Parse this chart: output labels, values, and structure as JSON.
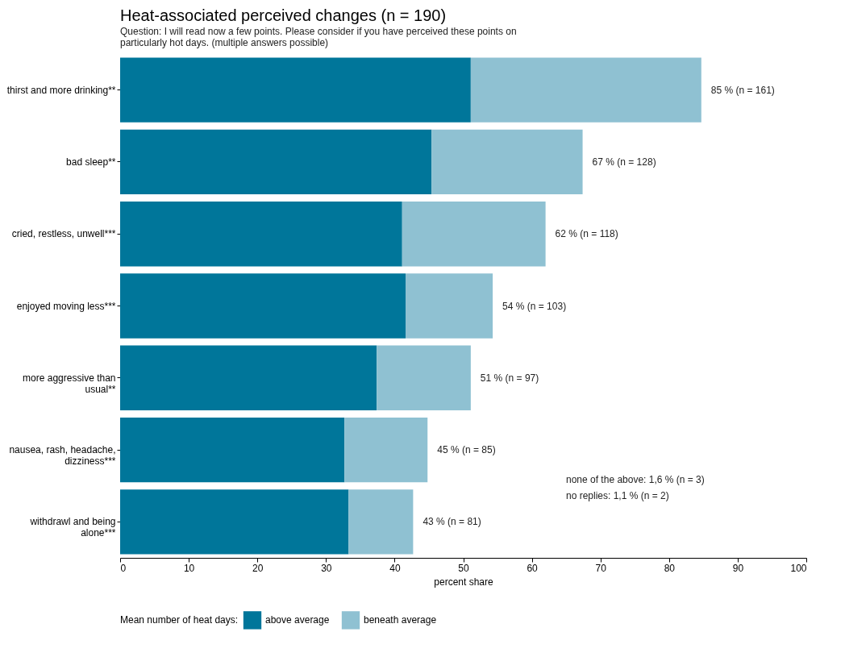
{
  "chart_data": {
    "type": "bar",
    "orientation": "horizontal",
    "stacked": true,
    "title": "Heat-associated perceived changes (n = 190)",
    "subtitle": "Question: I will read now a few points. Please consider if you have perceived these points on particularly hot days. (multiple answers possible)",
    "xlabel": "percent share",
    "legend_title": "Mean number of heat days:",
    "categories": [
      "thirst and more drinking**",
      "bad sleep**",
      "cried, restless, unwell***",
      "enjoyed moving less***",
      "more aggressive than\nusual**",
      "nausea, rash, headache,\ndizziness***",
      "withdrawl and being\nalone***"
    ],
    "series": [
      {
        "name": "above average",
        "color": "#00769a",
        "values": [
          51.1,
          45.4,
          41.1,
          41.6,
          37.4,
          32.7,
          33.3
        ]
      },
      {
        "name": "beneath average",
        "color": "#8fc1d2",
        "values": [
          33.6,
          22.0,
          20.9,
          12.7,
          13.7,
          12.1,
          9.4
        ]
      }
    ],
    "totals": [
      "85 % (n = 161)",
      "67 % (n = 128)",
      "62 % (n = 118)",
      "54 % (n = 103)",
      "51 % (n = 97)",
      "45 % (n = 85)",
      "43 % (n = 81)"
    ],
    "xlim": [
      0,
      100
    ],
    "xticks": [
      0,
      10,
      20,
      30,
      40,
      50,
      60,
      70,
      80,
      90,
      100
    ],
    "grid": false,
    "legend": "bottom",
    "annotations": [
      "none of the above: 1,6 % (n = 3)",
      "no replies: 1,1 % (n = 2)"
    ]
  }
}
